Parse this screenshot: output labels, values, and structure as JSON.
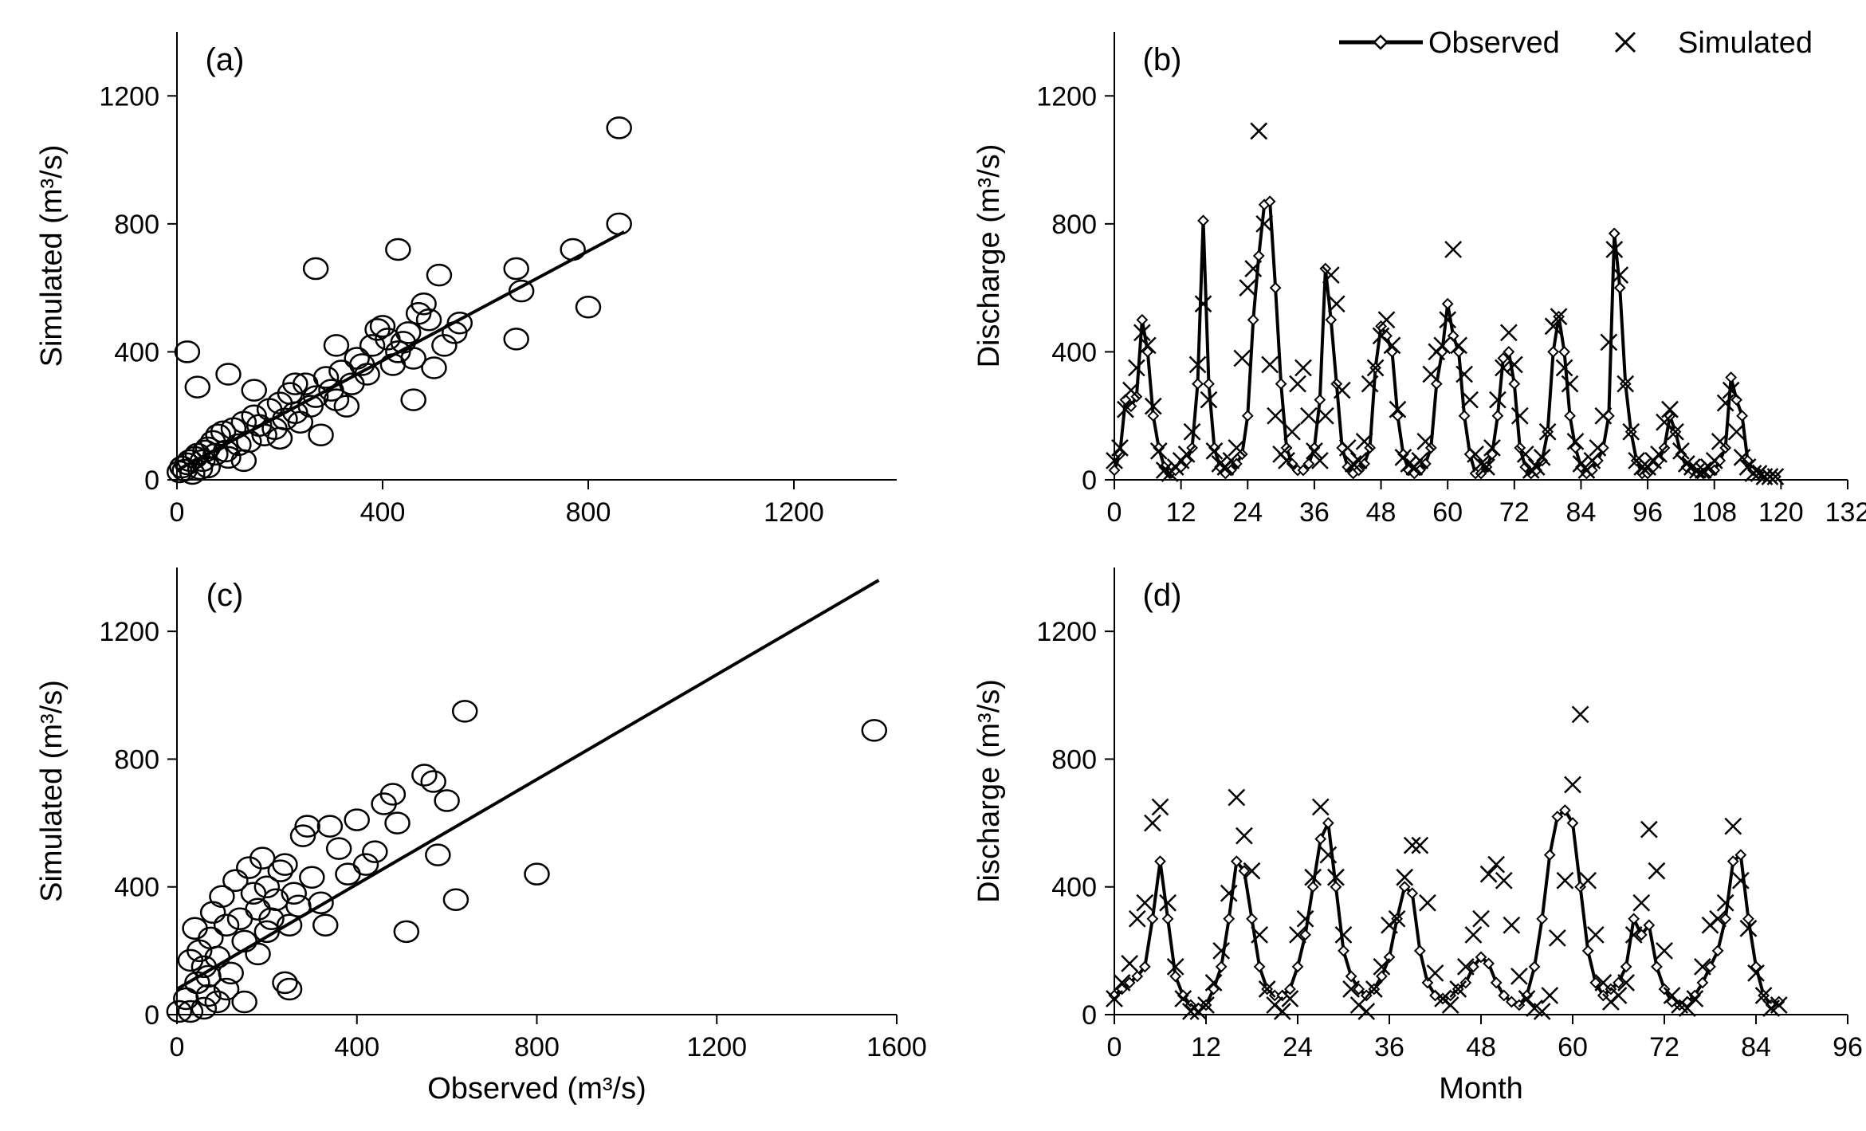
{
  "legend": {
    "observed": "Observed",
    "simulated": "Simulated"
  },
  "chart_data": [
    {
      "type": "scatter",
      "panel": "(a)",
      "xlabel": "",
      "ylabel": "Simulated (m³/s)",
      "xlim": [
        0,
        1400
      ],
      "ylim": [
        0,
        1400
      ],
      "xticks": [
        0,
        400,
        800,
        1200
      ],
      "yticks": [
        0,
        400,
        800,
        1200
      ],
      "fit_line": [
        [
          0,
          30
        ],
        [
          870,
          775
        ]
      ],
      "points": [
        [
          5,
          25
        ],
        [
          10,
          40
        ],
        [
          15,
          30
        ],
        [
          20,
          50
        ],
        [
          25,
          60
        ],
        [
          30,
          20
        ],
        [
          35,
          70
        ],
        [
          40,
          80
        ],
        [
          45,
          35
        ],
        [
          50,
          60
        ],
        [
          55,
          90
        ],
        [
          60,
          100
        ],
        [
          70,
          120
        ],
        [
          75,
          80
        ],
        [
          80,
          140
        ],
        [
          90,
          150
        ],
        [
          95,
          90
        ],
        [
          100,
          70
        ],
        [
          110,
          160
        ],
        [
          120,
          110
        ],
        [
          130,
          180
        ],
        [
          140,
          120
        ],
        [
          150,
          200
        ],
        [
          160,
          170
        ],
        [
          170,
          140
        ],
        [
          180,
          220
        ],
        [
          190,
          160
        ],
        [
          200,
          240
        ],
        [
          210,
          190
        ],
        [
          220,
          270
        ],
        [
          230,
          210
        ],
        [
          240,
          180
        ],
        [
          250,
          300
        ],
        [
          260,
          230
        ],
        [
          270,
          260
        ],
        [
          280,
          140
        ],
        [
          290,
          320
        ],
        [
          300,
          280
        ],
        [
          310,
          250
        ],
        [
          320,
          340
        ],
        [
          330,
          230
        ],
        [
          340,
          300
        ],
        [
          350,
          380
        ],
        [
          360,
          360
        ],
        [
          370,
          330
        ],
        [
          380,
          420
        ],
        [
          390,
          470
        ],
        [
          400,
          480
        ],
        [
          410,
          440
        ],
        [
          420,
          360
        ],
        [
          430,
          400
        ],
        [
          440,
          430
        ],
        [
          450,
          460
        ],
        [
          460,
          380
        ],
        [
          470,
          520
        ],
        [
          480,
          550
        ],
        [
          490,
          500
        ],
        [
          500,
          350
        ],
        [
          510,
          640
        ],
        [
          520,
          420
        ],
        [
          540,
          460
        ],
        [
          550,
          490
        ],
        [
          660,
          440
        ],
        [
          660,
          660
        ],
        [
          670,
          590
        ],
        [
          770,
          720
        ],
        [
          800,
          540
        ],
        [
          860,
          800
        ],
        [
          860,
          1100
        ],
        [
          20,
          400
        ],
        [
          40,
          290
        ],
        [
          100,
          330
        ],
        [
          270,
          660
        ],
        [
          430,
          720
        ],
        [
          460,
          250
        ],
        [
          200,
          130
        ],
        [
          150,
          280
        ],
        [
          130,
          60
        ],
        [
          60,
          40
        ],
        [
          230,
          300
        ],
        [
          310,
          420
        ]
      ]
    },
    {
      "type": "line",
      "panel": "(b)",
      "xlabel": "",
      "ylabel": "Discharge (m³/s)",
      "xlim": [
        0,
        132
      ],
      "ylim": [
        0,
        1400
      ],
      "xticks": [
        0,
        12,
        24,
        36,
        48,
        60,
        72,
        84,
        96,
        108,
        120,
        132
      ],
      "yticks": [
        0,
        400,
        800,
        1200
      ],
      "series": [
        {
          "name": "Observed",
          "values": [
            30,
            80,
            250,
            230,
            260,
            500,
            400,
            200,
            100,
            40,
            20,
            30,
            40,
            60,
            100,
            300,
            810,
            300,
            100,
            40,
            20,
            30,
            50,
            80,
            200,
            500,
            700,
            860,
            870,
            600,
            300,
            100,
            50,
            30,
            30,
            50,
            100,
            250,
            660,
            500,
            300,
            100,
            40,
            20,
            30,
            50,
            100,
            350,
            480,
            450,
            400,
            200,
            80,
            30,
            20,
            30,
            50,
            100,
            300,
            400,
            550,
            450,
            400,
            200,
            80,
            20,
            20,
            40,
            80,
            200,
            380,
            400,
            300,
            100,
            40,
            20,
            30,
            60,
            150,
            400,
            510,
            400,
            200,
            100,
            40,
            20,
            30,
            60,
            100,
            200,
            770,
            600,
            300,
            150,
            60,
            20,
            20,
            40,
            60,
            100,
            200,
            150,
            80,
            40,
            30,
            20,
            20,
            20,
            30,
            60,
            100,
            320,
            250,
            200,
            60,
            30,
            20,
            10,
            10,
            10
          ]
        },
        {
          "name": "Simulated",
          "values": [
            60,
            100,
            220,
            280,
            350,
            460,
            420,
            230,
            90,
            30,
            20,
            40,
            60,
            80,
            150,
            360,
            550,
            250,
            90,
            50,
            40,
            60,
            100,
            380,
            600,
            660,
            1090,
            800,
            360,
            200,
            80,
            60,
            150,
            300,
            350,
            200,
            90,
            60,
            200,
            640,
            550,
            280,
            100,
            50,
            60,
            120,
            300,
            350,
            450,
            500,
            420,
            220,
            70,
            50,
            40,
            60,
            120,
            330,
            400,
            420,
            500,
            720,
            420,
            330,
            250,
            80,
            50,
            40,
            100,
            250,
            350,
            460,
            360,
            200,
            80,
            30,
            40,
            70,
            150,
            480,
            510,
            350,
            300,
            120,
            50,
            30,
            60,
            100,
            200,
            430,
            720,
            640,
            300,
            150,
            60,
            40,
            40,
            60,
            80,
            180,
            220,
            150,
            90,
            50,
            40,
            30,
            30,
            40,
            60,
            120,
            240,
            280,
            150,
            70,
            40,
            20,
            20,
            10,
            10,
            10
          ]
        }
      ]
    },
    {
      "type": "scatter",
      "panel": "(c)",
      "xlabel": "Observed (m³/s)",
      "ylabel": "Simulated (m³/s)",
      "xlim": [
        0,
        1600
      ],
      "ylim": [
        0,
        1400
      ],
      "xticks": [
        0,
        400,
        800,
        1200,
        1600
      ],
      "yticks": [
        0,
        400,
        800,
        1200
      ],
      "fit_line": [
        [
          0,
          80
        ],
        [
          1560,
          1360
        ]
      ],
      "points": [
        [
          5,
          10
        ],
        [
          20,
          50
        ],
        [
          30,
          170
        ],
        [
          40,
          270
        ],
        [
          45,
          100
        ],
        [
          50,
          200
        ],
        [
          60,
          150
        ],
        [
          70,
          60
        ],
        [
          75,
          240
        ],
        [
          80,
          320
        ],
        [
          90,
          180
        ],
        [
          100,
          370
        ],
        [
          110,
          280
        ],
        [
          120,
          130
        ],
        [
          130,
          420
        ],
        [
          140,
          300
        ],
        [
          150,
          230
        ],
        [
          160,
          460
        ],
        [
          170,
          380
        ],
        [
          180,
          330
        ],
        [
          190,
          490
        ],
        [
          200,
          400
        ],
        [
          210,
          300
        ],
        [
          220,
          360
        ],
        [
          230,
          450
        ],
        [
          240,
          470
        ],
        [
          250,
          80
        ],
        [
          250,
          280
        ],
        [
          260,
          380
        ],
        [
          280,
          560
        ],
        [
          290,
          590
        ],
        [
          300,
          430
        ],
        [
          320,
          350
        ],
        [
          340,
          590
        ],
        [
          360,
          520
        ],
        [
          380,
          440
        ],
        [
          400,
          610
        ],
        [
          420,
          470
        ],
        [
          440,
          510
        ],
        [
          460,
          660
        ],
        [
          480,
          690
        ],
        [
          490,
          600
        ],
        [
          510,
          260
        ],
        [
          550,
          750
        ],
        [
          570,
          730
        ],
        [
          580,
          500
        ],
        [
          600,
          670
        ],
        [
          620,
          360
        ],
        [
          640,
          950
        ],
        [
          800,
          440
        ],
        [
          1550,
          890
        ],
        [
          90,
          40
        ],
        [
          150,
          40
        ],
        [
          30,
          10
        ],
        [
          60,
          20
        ],
        [
          110,
          80
        ],
        [
          200,
          260
        ],
        [
          330,
          280
        ],
        [
          270,
          340
        ],
        [
          180,
          190
        ],
        [
          70,
          120
        ],
        [
          240,
          100
        ]
      ]
    },
    {
      "type": "line",
      "panel": "(d)",
      "xlabel": "Month",
      "ylabel": "Discharge (m³/s)",
      "xlim": [
        0,
        96
      ],
      "ylim": [
        0,
        1400
      ],
      "xticks": [
        0,
        12,
        24,
        36,
        48,
        60,
        72,
        84,
        96
      ],
      "yticks": [
        0,
        400,
        800,
        1200
      ],
      "series": [
        {
          "name": "Observed",
          "values": [
            60,
            80,
            100,
            120,
            150,
            300,
            480,
            300,
            120,
            60,
            30,
            20,
            30,
            80,
            150,
            300,
            480,
            450,
            300,
            150,
            80,
            60,
            60,
            80,
            150,
            250,
            400,
            550,
            600,
            400,
            200,
            120,
            80,
            60,
            80,
            120,
            180,
            300,
            400,
            380,
            200,
            100,
            60,
            50,
            60,
            80,
            100,
            150,
            180,
            160,
            100,
            60,
            40,
            30,
            60,
            150,
            300,
            500,
            620,
            640,
            600,
            400,
            200,
            100,
            60,
            80,
            100,
            150,
            300,
            250,
            280,
            150,
            80,
            40,
            30,
            40,
            60,
            100,
            150,
            200,
            300,
            480,
            500,
            300,
            150,
            60,
            30,
            40
          ]
        },
        {
          "name": "Simulated",
          "values": [
            50,
            100,
            160,
            300,
            350,
            600,
            650,
            350,
            150,
            50,
            10,
            10,
            30,
            100,
            200,
            380,
            680,
            560,
            450,
            250,
            80,
            30,
            10,
            50,
            250,
            300,
            430,
            650,
            500,
            430,
            250,
            80,
            30,
            10,
            80,
            150,
            280,
            300,
            430,
            530,
            530,
            350,
            130,
            50,
            30,
            80,
            150,
            250,
            300,
            440,
            470,
            420,
            280,
            120,
            50,
            20,
            10,
            60,
            240,
            420,
            720,
            940,
            420,
            250,
            100,
            40,
            60,
            100,
            250,
            350,
            580,
            450,
            200,
            60,
            30,
            20,
            50,
            150,
            280,
            300,
            350,
            590,
            420,
            270,
            130,
            60,
            20,
            30
          ]
        }
      ]
    }
  ]
}
